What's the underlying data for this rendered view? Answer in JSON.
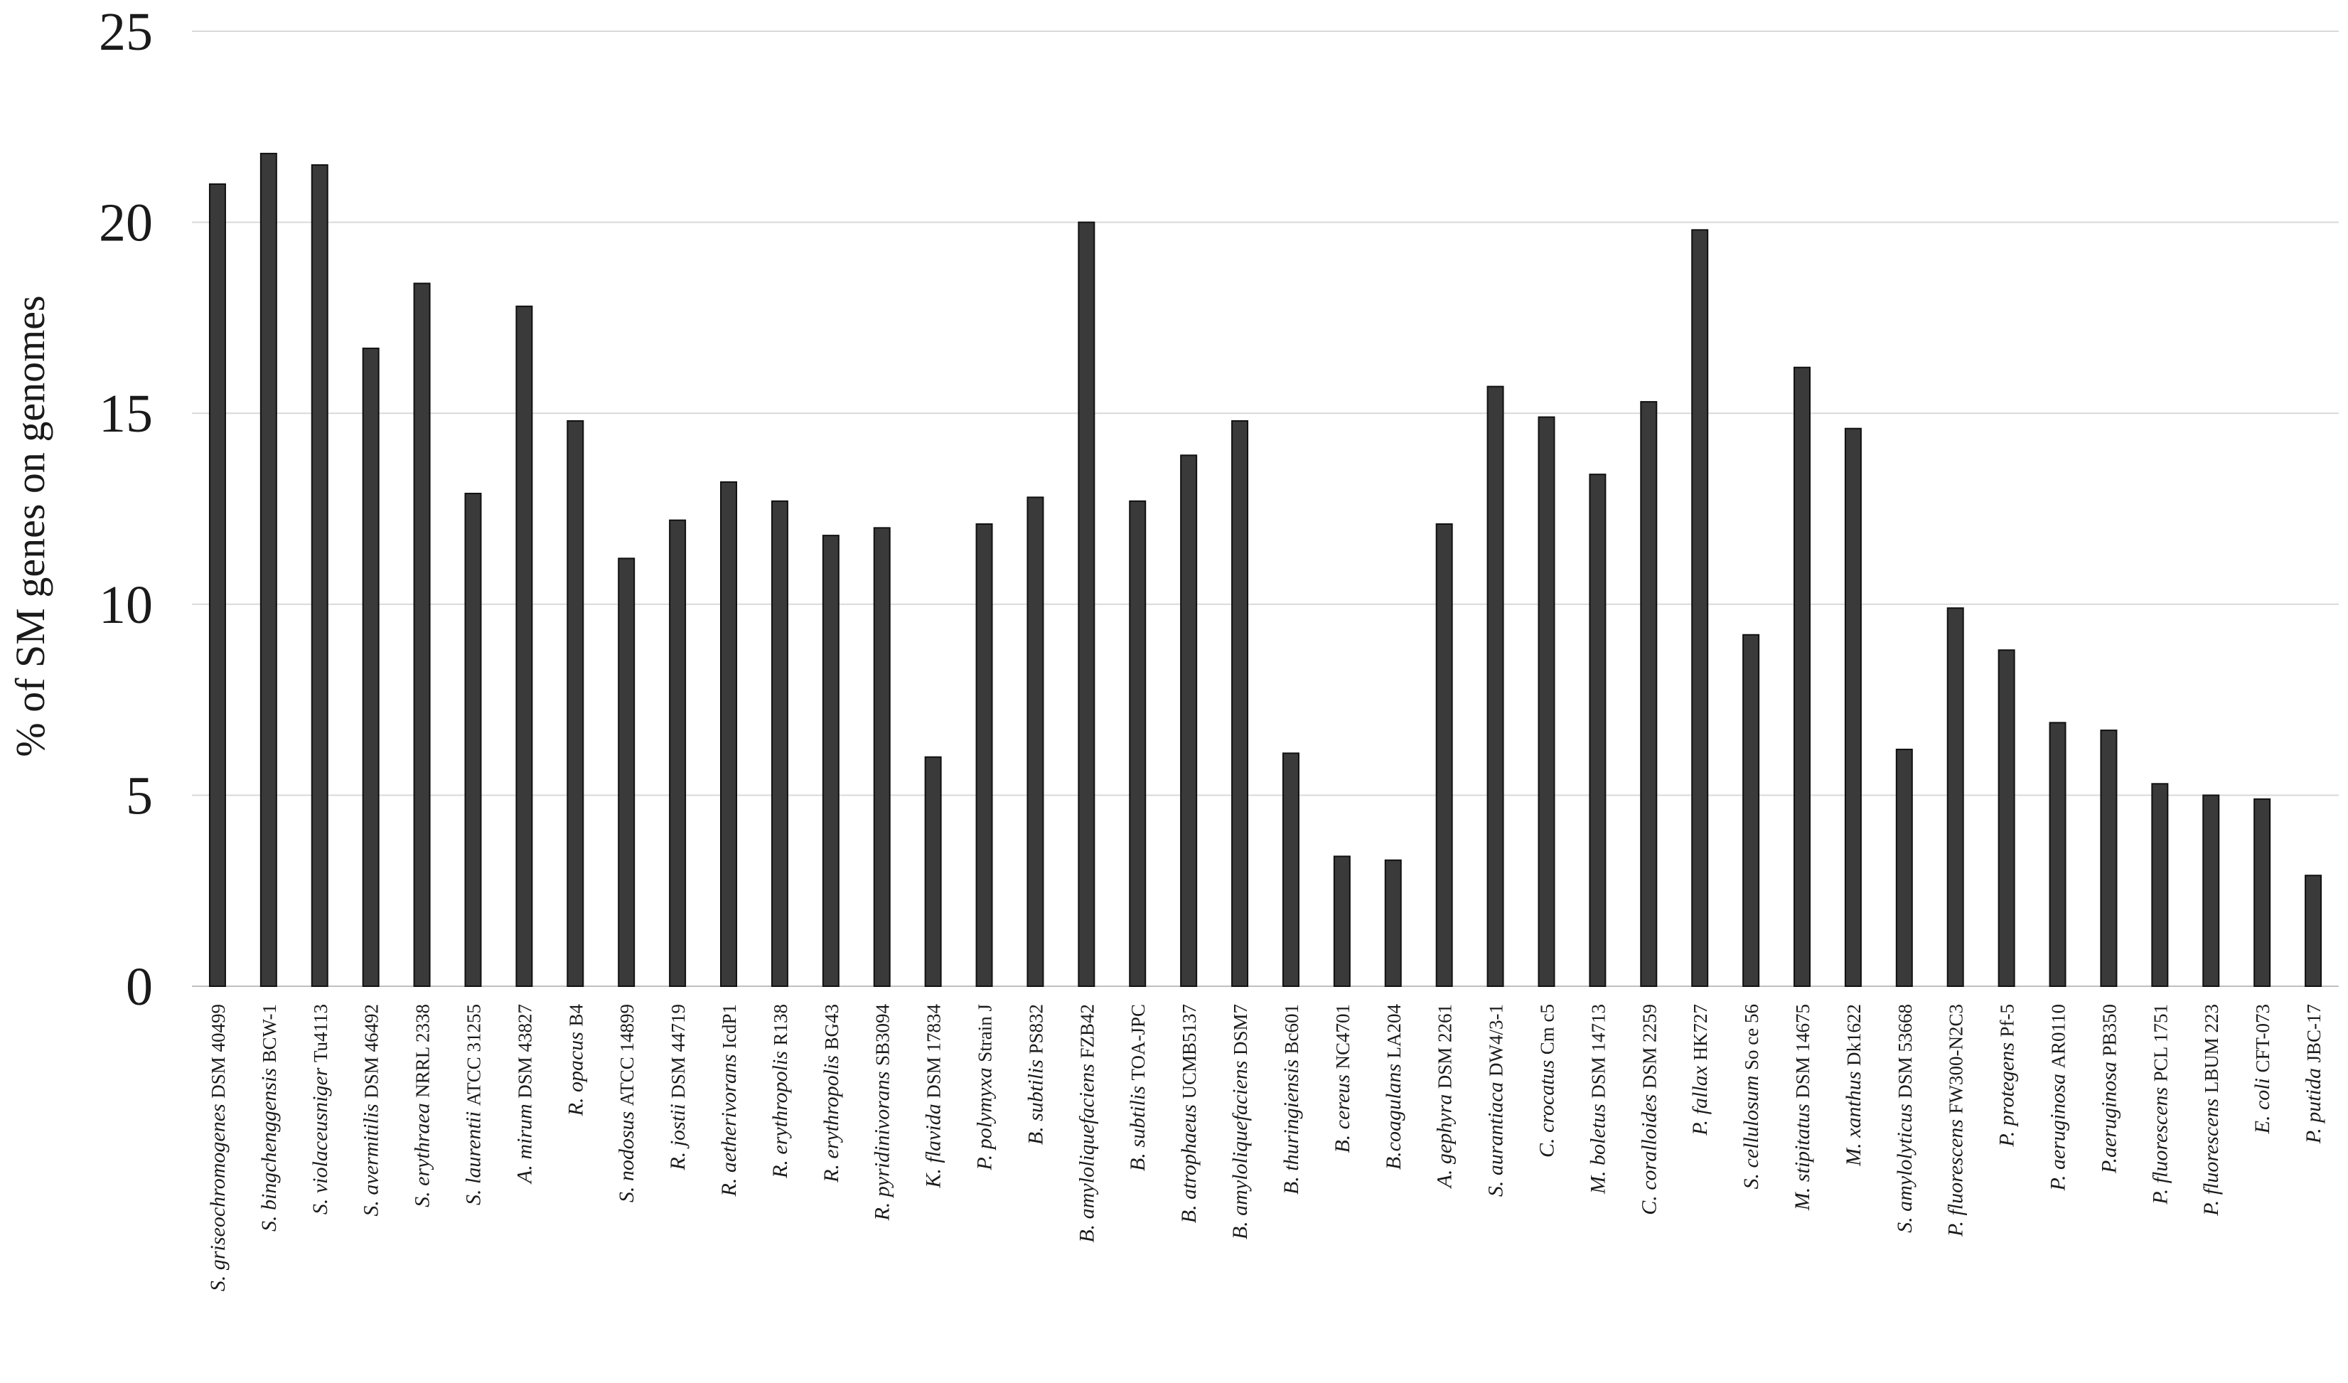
{
  "colors": {
    "bar": "#3a3a3a",
    "bar_outline": "#111111",
    "grid": "#d9d9d9"
  },
  "chart_data": {
    "type": "bar",
    "title": "",
    "xlabel": "",
    "ylabel": "% of SM genes on genomes",
    "ylim": [
      0,
      25
    ],
    "yticks": [
      "0",
      "5",
      "10",
      "15",
      "20",
      "25"
    ],
    "grid": true,
    "legend": "none",
    "categories": [
      {
        "species": "S. griseochromogenes",
        "strain": "DSM 40499"
      },
      {
        "species": "S. bingchenggensis",
        "strain": "BCW-1"
      },
      {
        "species": "S. violaceusniger",
        "strain": "Tu4113"
      },
      {
        "species": "S. avermitilis",
        "strain": "DSM 46492"
      },
      {
        "species": "S. erythraea",
        "strain": "NRRL 2338"
      },
      {
        "species": "S. laurentii",
        "strain": "ATCC 31255"
      },
      {
        "species": "A. mirum",
        "strain": "DSM 43827"
      },
      {
        "species": "R. opacus",
        "strain": "B4"
      },
      {
        "species": "S. nodosus",
        "strain": "ATCC 14899"
      },
      {
        "species": "R. jostii",
        "strain": "DSM 44719"
      },
      {
        "species": "R. aetherivorans",
        "strain": "IcdP1"
      },
      {
        "species": "R. erythropolis",
        "strain": "R138"
      },
      {
        "species": "R. erythropolis",
        "strain": "BG43"
      },
      {
        "species": "R. pyridinivorans",
        "strain": "SB3094"
      },
      {
        "species": "K. flavida",
        "strain": "DSM 17834"
      },
      {
        "species": "P. polymyxa",
        "strain": "Strain J"
      },
      {
        "species": "B. subtilis",
        "strain": "PS832"
      },
      {
        "species": "B. amyloliquefaciens",
        "strain": "FZB42"
      },
      {
        "species": "B. subtilis",
        "strain": "TOA-JPC"
      },
      {
        "species": "B. atrophaeus",
        "strain": "UCMB5137"
      },
      {
        "species": "B. amyloliquefaciens",
        "strain": "DSM7"
      },
      {
        "species": "B. thuringiensis",
        "strain": "Bc601"
      },
      {
        "species": "B. cereus",
        "strain": "NC4701"
      },
      {
        "species": "B.coagulans",
        "strain": "LA204"
      },
      {
        "species": "A. gephyra",
        "strain": "DSM 2261"
      },
      {
        "species": "S. aurantiaca",
        "strain": "DW4/3-1"
      },
      {
        "species": "C. crocatus",
        "strain": "Cm c5"
      },
      {
        "species": "M. boletus",
        "strain": "DSM 14713"
      },
      {
        "species": "C. coralloides",
        "strain": "DSM 2259"
      },
      {
        "species": "P. fallax",
        "strain": "HK727"
      },
      {
        "species": "S. cellulosum",
        "strain": "So ce 56"
      },
      {
        "species": "M. stipitatus",
        "strain": "DSM 14675"
      },
      {
        "species": "M. xanthus",
        "strain": "Dk1622"
      },
      {
        "species": "S. amylolyticus",
        "strain": "DSM 53668"
      },
      {
        "species": "P. fluorescens",
        "strain": "FW300-N2C3"
      },
      {
        "species": "P. protegens",
        "strain": "Pf-5"
      },
      {
        "species": "P. aeruginosa",
        "strain": "AR0110"
      },
      {
        "species": "P.aeruginosa",
        "strain": "PB350"
      },
      {
        "species": "P. fluorescens",
        "strain": "PCL 1751"
      },
      {
        "species": "P. fluorescens",
        "strain": "LBUM 223"
      },
      {
        "species": "E. coli",
        "strain": "CFT-073"
      },
      {
        "species": "P. putida",
        "strain": "JBC-17"
      }
    ],
    "values": [
      21.0,
      21.8,
      21.5,
      16.7,
      18.4,
      12.9,
      17.8,
      14.8,
      11.2,
      12.2,
      13.2,
      12.7,
      11.8,
      12.0,
      6.0,
      12.1,
      12.8,
      20.0,
      12.7,
      13.9,
      14.8,
      6.1,
      3.4,
      3.3,
      12.1,
      15.7,
      14.9,
      13.4,
      15.3,
      19.8,
      9.2,
      16.2,
      14.6,
      6.2,
      9.9,
      8.8,
      6.9,
      6.7,
      5.3,
      5.0,
      4.9,
      2.9
    ]
  }
}
